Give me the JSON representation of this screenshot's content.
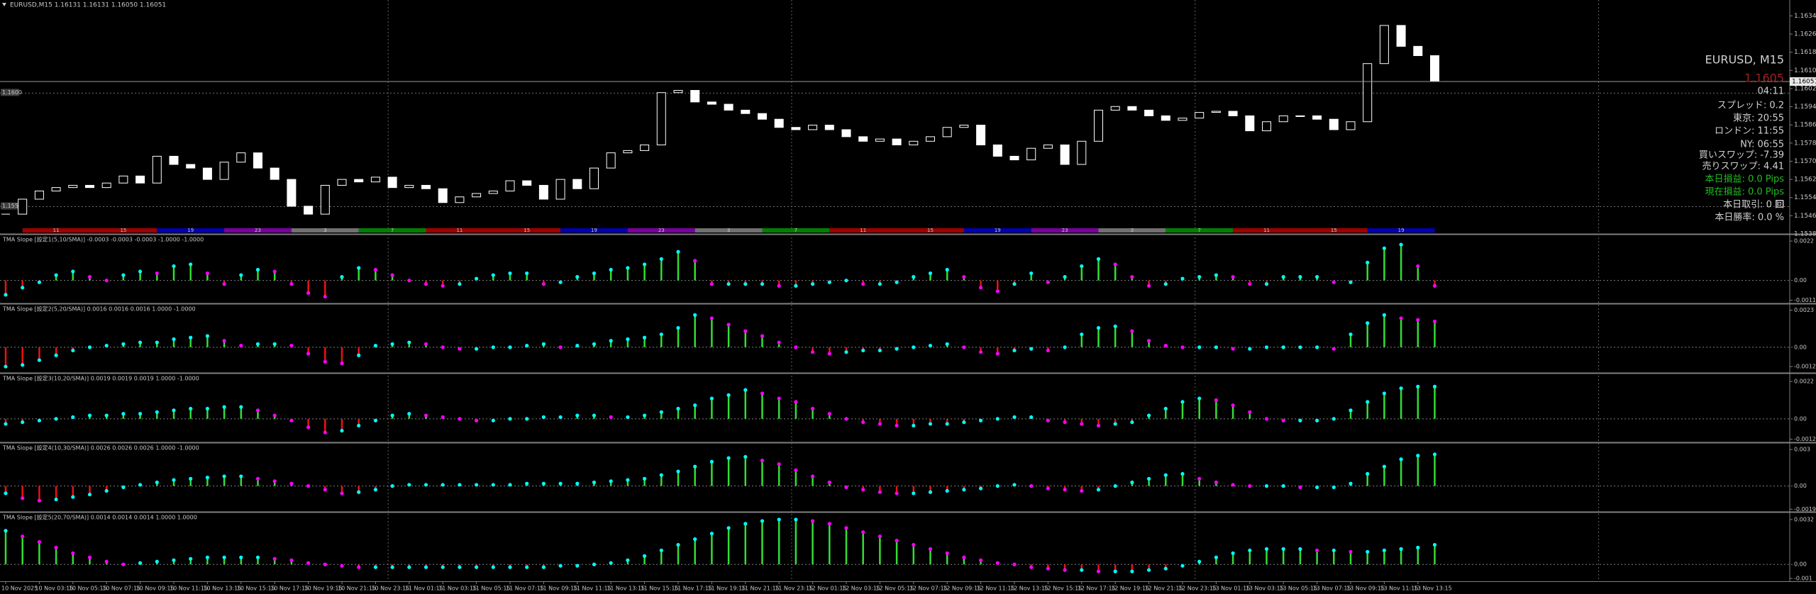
{
  "chart_data": [
    {
      "type": "candlestick",
      "title": "EURUSD,M15  1.16131 1.16131 1.16050 1.16051",
      "color": "#ffffff",
      "values": [
        1.15467,
        1.15533,
        1.15569,
        1.15584,
        1.15594,
        1.15584,
        1.15604,
        1.15635,
        1.15604,
        1.15722,
        1.15686,
        1.1567,
        1.1562,
        1.15696,
        1.15737,
        1.1567,
        1.1562,
        1.15502,
        1.15467,
        1.15594,
        1.1562,
        1.15609,
        1.1563,
        1.15584,
        1.15594,
        1.15579,
        1.15518,
        1.15543,
        1.15558,
        1.15569,
        1.15614,
        1.15594,
        1.15533,
        1.1562,
        1.15579,
        1.1567,
        1.15737,
        1.15747,
        1.15772,
        1.16002,
        1.16012,
        1.15961,
        1.15951,
        1.15925,
        1.1591,
        1.15885,
        1.15849,
        1.15839,
        1.15859,
        1.15839,
        1.15808,
        1.15788,
        1.15798,
        1.15772,
        1.15788,
        1.15808,
        1.15849,
        1.15859,
        1.15772,
        1.15722,
        1.15706,
        1.15757,
        1.15772,
        1.15686,
        1.15788,
        1.15925,
        1.15941,
        1.15925,
        1.159,
        1.1588,
        1.1589,
        1.15915,
        1.1592,
        1.159,
        1.15834,
        1.15874,
        1.159,
        1.159,
        1.15885,
        1.15839,
        1.15874,
        1.1613,
        1.16298,
        1.16206,
        1.16165,
        1.16051
      ],
      "ylim": [
        1.1538,
        1.1641
      ],
      "yticks": [
        {
          "value": 1.1634,
          "label": "1.16340"
        },
        {
          "value": 1.1626,
          "label": "1.16260"
        },
        {
          "value": 1.1618,
          "label": "1.16180"
        },
        {
          "value": 1.161,
          "label": "1.16100"
        },
        {
          "value": 1.1602,
          "label": "1.16020"
        },
        {
          "value": 1.1594,
          "label": "1.15940"
        },
        {
          "value": 1.1586,
          "label": "1.15860"
        },
        {
          "value": 1.1578,
          "label": "1.15780"
        },
        {
          "value": 1.157,
          "label": "1.15700"
        },
        {
          "value": 1.1562,
          "label": "1.15620"
        },
        {
          "value": 1.1554,
          "label": "1.15540"
        },
        {
          "value": 1.1546,
          "label": "1.15460"
        },
        {
          "value": 1.1538,
          "label": "1.15380"
        }
      ],
      "levels": [
        {
          "value": 1.16,
          "label": "1.1600"
        },
        {
          "value": 1.155,
          "label": "1.1550"
        }
      ],
      "bid": 1.16051,
      "sessions": [
        {
          "label": "11",
          "color": "#a00000"
        },
        {
          "label": "15",
          "color": "#a00000"
        },
        {
          "label": "19",
          "color": "#0000b0"
        },
        {
          "label": "23",
          "color": "#7a00a0"
        },
        {
          "label": "3",
          "color": "#707070"
        },
        {
          "label": "7",
          "color": "#008000"
        },
        {
          "label": "11",
          "color": "#a00000"
        },
        {
          "label": "15",
          "color": "#a00000"
        },
        {
          "label": "19",
          "color": "#0000b0"
        },
        {
          "label": "23",
          "color": "#7a00a0"
        },
        {
          "label": "3",
          "color": "#707070"
        },
        {
          "label": "7",
          "color": "#008000"
        },
        {
          "label": "11",
          "color": "#a00000"
        },
        {
          "label": "15",
          "color": "#a00000"
        },
        {
          "label": "19",
          "color": "#0000b0"
        },
        {
          "label": "23",
          "color": "#7a00a0"
        },
        {
          "label": "3",
          "color": "#707070"
        },
        {
          "label": "7",
          "color": "#008000"
        },
        {
          "label": "11",
          "color": "#a00000"
        },
        {
          "label": "15",
          "color": "#a00000"
        },
        {
          "label": "19",
          "color": "#0000b0"
        }
      ]
    },
    {
      "type": "bar",
      "title": "TMA Slope [設定1(5,10/SMA)] -0.0003 -0.0003 -0.0003 -1.0000 -1.0000",
      "pos_color": "#33dd33",
      "neg_color": "#ee1111",
      "up_color": "#00ffff",
      "down_color": "#ff00ff",
      "ylim": [
        -0.0012,
        0.0024
      ],
      "yticks": [
        0.0022,
        {
          "value": 0,
          "label": "0.00"
        },
        -0.0011
      ],
      "values": [
        -0.0008,
        -0.0004,
        -0.0001,
        0.0003,
        0.0005,
        0.0002,
        0,
        0.0003,
        0.0005,
        0.0004,
        0.0008,
        0.0009,
        0.0004,
        -0.0002,
        0.0003,
        0.0006,
        0.0005,
        -0.0002,
        -0.0007,
        -0.0009,
        0.0002,
        0.0007,
        0.0006,
        0.0003,
        0,
        -0.0002,
        -0.0003,
        -0.0002,
        0.0001,
        0.0003,
        0.0004,
        0.0004,
        -0.0002,
        -0.0001,
        0.0002,
        0.0004,
        0.0006,
        0.0007,
        0.0009,
        0.0012,
        0.0016,
        0.0011,
        -0.0002,
        -0.0002,
        -0.0002,
        -0.0002,
        -0.0003,
        -0.0003,
        -0.0002,
        -0.0001,
        0,
        -0.0002,
        -0.0002,
        -0.0001,
        0.0002,
        0.0004,
        0.0006,
        0.0002,
        -0.0004,
        -0.0006,
        -0.0002,
        0.0004,
        -0.0001,
        0.0002,
        0.0008,
        0.0012,
        0.0009,
        0.0002,
        -0.0003,
        -0.0002,
        0.0001,
        0.0002,
        0.0003,
        0.0002,
        -0.0002,
        -0.0002,
        0.0002,
        0.0002,
        0.0002,
        -0.0001,
        -0.0001,
        0.001,
        0.0018,
        0.002,
        0.0008,
        -0.0003
      ]
    },
    {
      "type": "bar",
      "title": "TMA Slope [設定2(5,20/SMA)] 0.0016 0.0016 0.0016 1.0000 -1.0000",
      "pos_color": "#33dd33",
      "neg_color": "#ee1111",
      "up_color": "#00ffff",
      "down_color": "#ff00ff",
      "ylim": [
        -0.0015,
        0.0025
      ],
      "yticks": [
        0.0023,
        {
          "value": 0,
          "label": "0.00"
        },
        -0.0012
      ],
      "values": [
        -0.0012,
        -0.0011,
        -0.0008,
        -0.0005,
        -0.0002,
        0,
        0.0001,
        0.0002,
        0.0003,
        0.0003,
        0.0005,
        0.0006,
        0.0007,
        0.0004,
        0.0001,
        0.0002,
        0.0002,
        0.0001,
        -0.0004,
        -0.0009,
        -0.001,
        -0.0005,
        0.0001,
        0.0002,
        0.0003,
        0.0002,
        0,
        -0.0001,
        -0.0001,
        0,
        0,
        0.0001,
        0.0002,
        0,
        0.0001,
        0.0002,
        0.0004,
        0.0005,
        0.0006,
        0.0008,
        0.0012,
        0.002,
        0.0018,
        0.0014,
        0.001,
        0.0007,
        0.0003,
        0,
        -0.0003,
        -0.0004,
        -0.0003,
        -0.0002,
        -0.0002,
        -0.0001,
        0,
        0.0001,
        0.0002,
        0,
        -0.0003,
        -0.0004,
        -0.0002,
        -0.0001,
        -0.0002,
        0,
        0.0008,
        0.0012,
        0.0013,
        0.001,
        0.0004,
        0.0001,
        0,
        0,
        0,
        -0.0001,
        -0.0001,
        0,
        0,
        0,
        0,
        -0.0001,
        0.0008,
        0.0015,
        0.002,
        0.0018,
        0.0017,
        0.0016
      ]
    },
    {
      "type": "bar",
      "title": "TMA Slope [設定3(10,20/SMA)] 0.0019 0.0019 0.0019 1.0000 -1.0000",
      "pos_color": "#33dd33",
      "neg_color": "#ee1111",
      "up_color": "#00ffff",
      "down_color": "#ff00ff",
      "ylim": [
        -0.0013,
        0.0025
      ],
      "yticks": [
        0.0022,
        {
          "value": 0,
          "label": "0.00"
        },
        -0.0012
      ],
      "values": [
        -0.0003,
        -0.0002,
        -0.0001,
        0,
        0.0001,
        0.0002,
        0.0002,
        0.0003,
        0.0003,
        0.0004,
        0.0005,
        0.0006,
        0.0006,
        0.0007,
        0.0007,
        0.0005,
        0.0002,
        -0.0001,
        -0.0005,
        -0.0008,
        -0.0007,
        -0.0004,
        -0.0001,
        0.0002,
        0.0003,
        0.0002,
        0.0001,
        0,
        -0.0001,
        -0.0001,
        0,
        0,
        0.0001,
        0.0001,
        0.0002,
        0.0002,
        0.0001,
        0.0001,
        0.0002,
        0.0004,
        0.0006,
        0.0008,
        0.0012,
        0.0014,
        0.0017,
        0.0015,
        0.0012,
        0.001,
        0.0006,
        0.0003,
        0,
        -0.0002,
        -0.0003,
        -0.0004,
        -0.0004,
        -0.0003,
        -0.0003,
        -0.0002,
        -0.0001,
        0,
        0.0001,
        0.0001,
        -0.0001,
        -0.0002,
        -0.0003,
        -0.0004,
        -0.0003,
        -0.0002,
        0.0002,
        0.0006,
        0.001,
        0.0012,
        0.0011,
        0.0008,
        0.0004,
        0,
        -0.0001,
        -0.0001,
        -0.0001,
        0,
        0.0005,
        0.001,
        0.0015,
        0.0018,
        0.0019,
        0.0019
      ]
    },
    {
      "type": "bar",
      "title": "TMA Slope [設定4(10,30/SMA)] 0.0026 0.0026 0.0026 1.0000 -1.0000",
      "pos_color": "#33dd33",
      "neg_color": "#ee1111",
      "up_color": "#00ffff",
      "down_color": "#ff00ff",
      "ylim": [
        -0.002,
        0.0033
      ],
      "yticks": [
        0.003,
        {
          "value": 0,
          "label": "0.00"
        },
        -0.0019
      ],
      "values": [
        -0.0006,
        -0.001,
        -0.0012,
        -0.0011,
        -0.0009,
        -0.0007,
        -0.0004,
        -0.0001,
        0.0001,
        0.0003,
        0.0005,
        0.0006,
        0.0007,
        0.0008,
        0.0008,
        0.0006,
        0.0004,
        0.0002,
        0,
        -0.0003,
        -0.0006,
        -0.0005,
        -0.0003,
        0,
        0.0001,
        0.0001,
        0.0001,
        0.0001,
        0.0001,
        0.0001,
        0.0001,
        0.0002,
        0.0002,
        0.0002,
        0.0002,
        0.0003,
        0.0004,
        0.0005,
        0.0006,
        0.0009,
        0.0012,
        0.0016,
        0.002,
        0.0023,
        0.0024,
        0.0021,
        0.0018,
        0.0013,
        0.0008,
        0.0003,
        -0.0001,
        -0.0003,
        -0.0005,
        -0.0006,
        -0.0006,
        -0.0005,
        -0.0004,
        -0.0003,
        -0.0002,
        0,
        0.0001,
        0,
        -0.0002,
        -0.0003,
        -0.0004,
        -0.0003,
        0,
        0.0003,
        0.0006,
        0.0009,
        0.001,
        0.0006,
        0.0003,
        0.0001,
        0,
        0,
        0,
        -0.0001,
        -0.0001,
        -0.0001,
        0.0002,
        0.001,
        0.0016,
        0.0022,
        0.0025,
        0.0026
      ]
    },
    {
      "type": "bar",
      "title": "TMA Slope [設定5(20,70/SMA)] 0.0014 0.0014 0.0014 1.0000 1.0000",
      "pos_color": "#33dd33",
      "neg_color": "#ee1111",
      "up_color": "#00ffff",
      "down_color": "#ff00ff",
      "ylim": [
        -0.0011,
        0.0035
      ],
      "yticks": [
        0.0032,
        {
          "value": 0,
          "label": "0.00"
        },
        -0.001
      ],
      "values": [
        0.0024,
        0.002,
        0.0016,
        0.0012,
        0.0008,
        0.0005,
        0.0002,
        0,
        0.0001,
        0.0002,
        0.0003,
        0.0004,
        0.0005,
        0.0005,
        0.0005,
        0.0005,
        0.0004,
        0.0003,
        0.0001,
        0,
        -0.0001,
        -0.0002,
        -0.0002,
        -0.0002,
        -0.0002,
        -0.0002,
        -0.0002,
        -0.0002,
        -0.0002,
        -0.0002,
        -0.0002,
        -0.0002,
        -0.0002,
        -0.0001,
        -0.0001,
        0,
        0.0001,
        0.0003,
        0.0006,
        0.001,
        0.0014,
        0.0018,
        0.0022,
        0.0026,
        0.0029,
        0.0031,
        0.0032,
        0.0032,
        0.0031,
        0.0029,
        0.0026,
        0.0023,
        0.002,
        0.0017,
        0.0014,
        0.0011,
        0.0008,
        0.0005,
        0.0003,
        0.0001,
        0,
        -0.0002,
        -0.0003,
        -0.0004,
        -0.0004,
        -0.0005,
        -0.0005,
        -0.0005,
        -0.0004,
        -0.0003,
        -0.0001,
        0.0002,
        0.0005,
        0.0008,
        0.001,
        0.0011,
        0.0011,
        0.0011,
        0.001,
        0.001,
        0.0009,
        0.0009,
        0.001,
        0.0011,
        0.0012,
        0.0014
      ]
    }
  ],
  "time_axis": [
    "10 Nov 2025",
    "10 Nov 03:15",
    "10 Nov 05:15",
    "10 Nov 07:15",
    "10 Nov 09:15",
    "10 Nov 11:15",
    "10 Nov 13:15",
    "10 Nov 15:15",
    "10 Nov 17:15",
    "10 Nov 19:15",
    "10 Nov 21:15",
    "10 Nov 23:15",
    "11 Nov 01:15",
    "11 Nov 03:15",
    "11 Nov 05:15",
    "11 Nov 07:15",
    "11 Nov 09:15",
    "11 Nov 11:15",
    "11 Nov 13:15",
    "11 Nov 15:15",
    "11 Nov 17:15",
    "11 Nov 19:15",
    "11 Nov 21:15",
    "11 Nov 23:15",
    "12 Nov 01:15",
    "12 Nov 03:15",
    "12 Nov 05:15",
    "12 Nov 07:15",
    "12 Nov 09:15",
    "12 Nov 11:15",
    "12 Nov 13:15",
    "12 Nov 15:15",
    "12 Nov 17:15",
    "12 Nov 19:15",
    "12 Nov 21:15",
    "12 Nov 23:15",
    "13 Nov 01:15",
    "13 Nov 03:15",
    "13 Nov 05:15",
    "13 Nov 07:15",
    "13 Nov 09:15",
    "13 Nov 11:15",
    "13 Nov 13:15"
  ],
  "info_panel": [
    {
      "text": "EURUSD, M15",
      "color": "#d0d0d0"
    },
    {
      "text": "1.1605",
      "color": "#a02020"
    },
    {
      "text": "04:11",
      "color": "#d0d0d0"
    },
    {
      "text": "スプレッド: 0.2",
      "color": "#d0d0d0"
    },
    {
      "text": "東京: 20:55",
      "color": "#d0d0d0"
    },
    {
      "text": "ロンドン: 11:55",
      "color": "#d0d0d0"
    },
    {
      "text": "NY: 06:55",
      "color": "#d0d0d0"
    },
    {
      "text": "買いスワップ: -7.39",
      "color": "#d0d0d0"
    },
    {
      "text": "売りスワップ: 4.41",
      "color": "#d0d0d0"
    },
    {
      "text": "本日損益: 0.0 Pips",
      "color": "#22bb22"
    },
    {
      "text": "現在損益: 0.0 Pips",
      "color": "#22bb22"
    },
    {
      "text": "本日取引: 0 回",
      "color": "#d0d0d0"
    },
    {
      "text": "本日勝率: 0.0 %",
      "color": "#d0d0d0"
    }
  ]
}
